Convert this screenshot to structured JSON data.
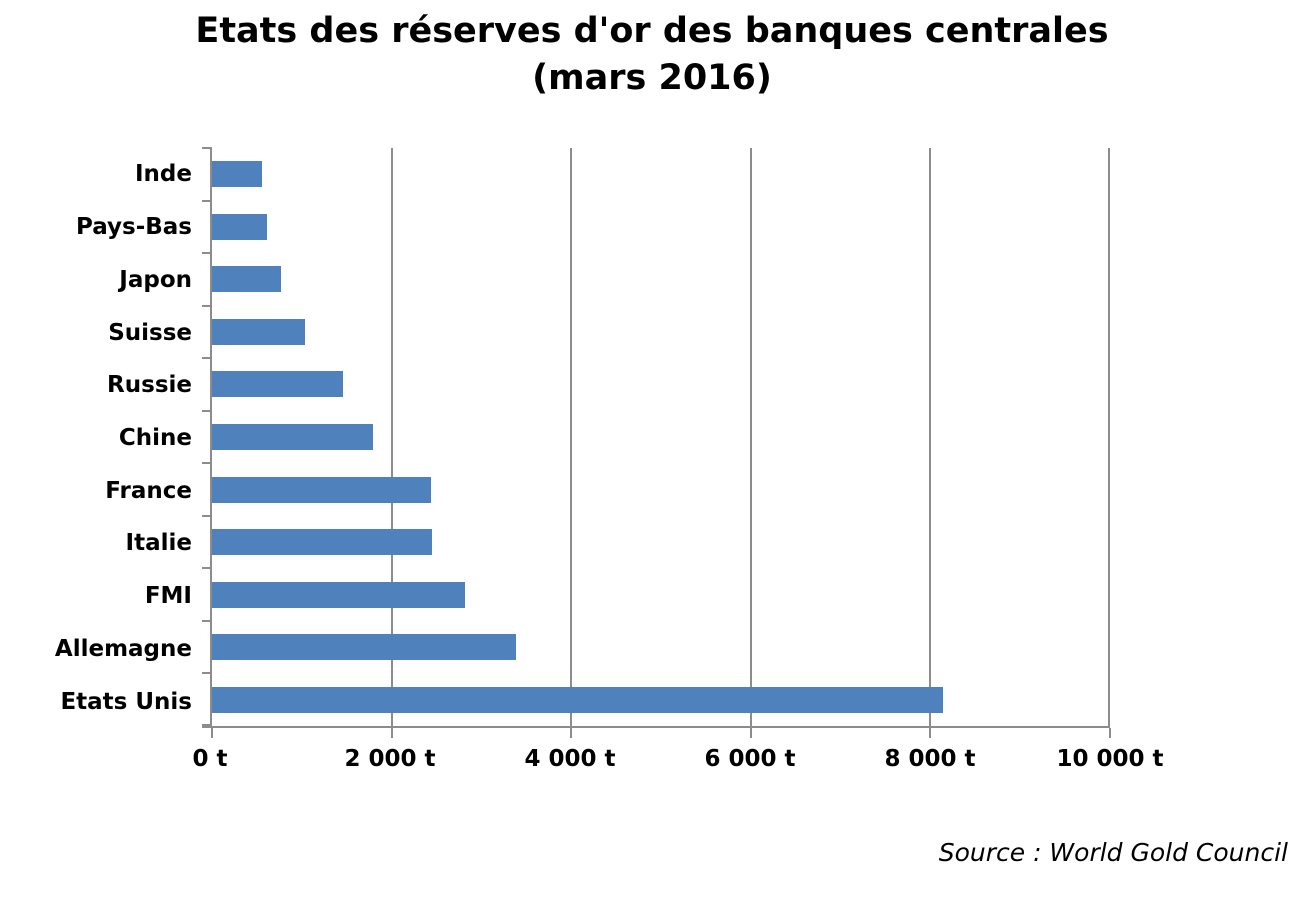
{
  "title": {
    "line1": "Etats des réserves d'or des banques centrales",
    "line2": "(mars 2016)"
  },
  "source": "Source : World Gold Council",
  "colors": {
    "bar": "#4F81BD",
    "axis": "#8C8C8C",
    "grid": "#8C8C8C",
    "text": "#000000"
  },
  "chart_data": {
    "type": "bar",
    "orientation": "horizontal",
    "title": "Etats des réserves d'or des banques centrales (mars 2016)",
    "xlabel": "",
    "ylabel": "",
    "unit": "t",
    "categories": [
      "Inde",
      "Pays-Bas",
      "Japon",
      "Suisse",
      "Russie",
      "Chine",
      "France",
      "Italie",
      "FMI",
      "Allemagne",
      "Etats Unis"
    ],
    "values": [
      558,
      613,
      765,
      1040,
      1460,
      1790,
      2435,
      2450,
      2815,
      3380,
      8135
    ],
    "xlim": [
      0,
      10000
    ],
    "x_ticks": [
      {
        "value": 0,
        "label": "0 t"
      },
      {
        "value": 2000,
        "label": "2 000 t"
      },
      {
        "value": 4000,
        "label": "4 000 t"
      },
      {
        "value": 6000,
        "label": "6 000 t"
      },
      {
        "value": 8000,
        "label": "8 000 t"
      },
      {
        "value": 10000,
        "label": "10 000 t"
      }
    ],
    "grid": true,
    "legend": false
  }
}
